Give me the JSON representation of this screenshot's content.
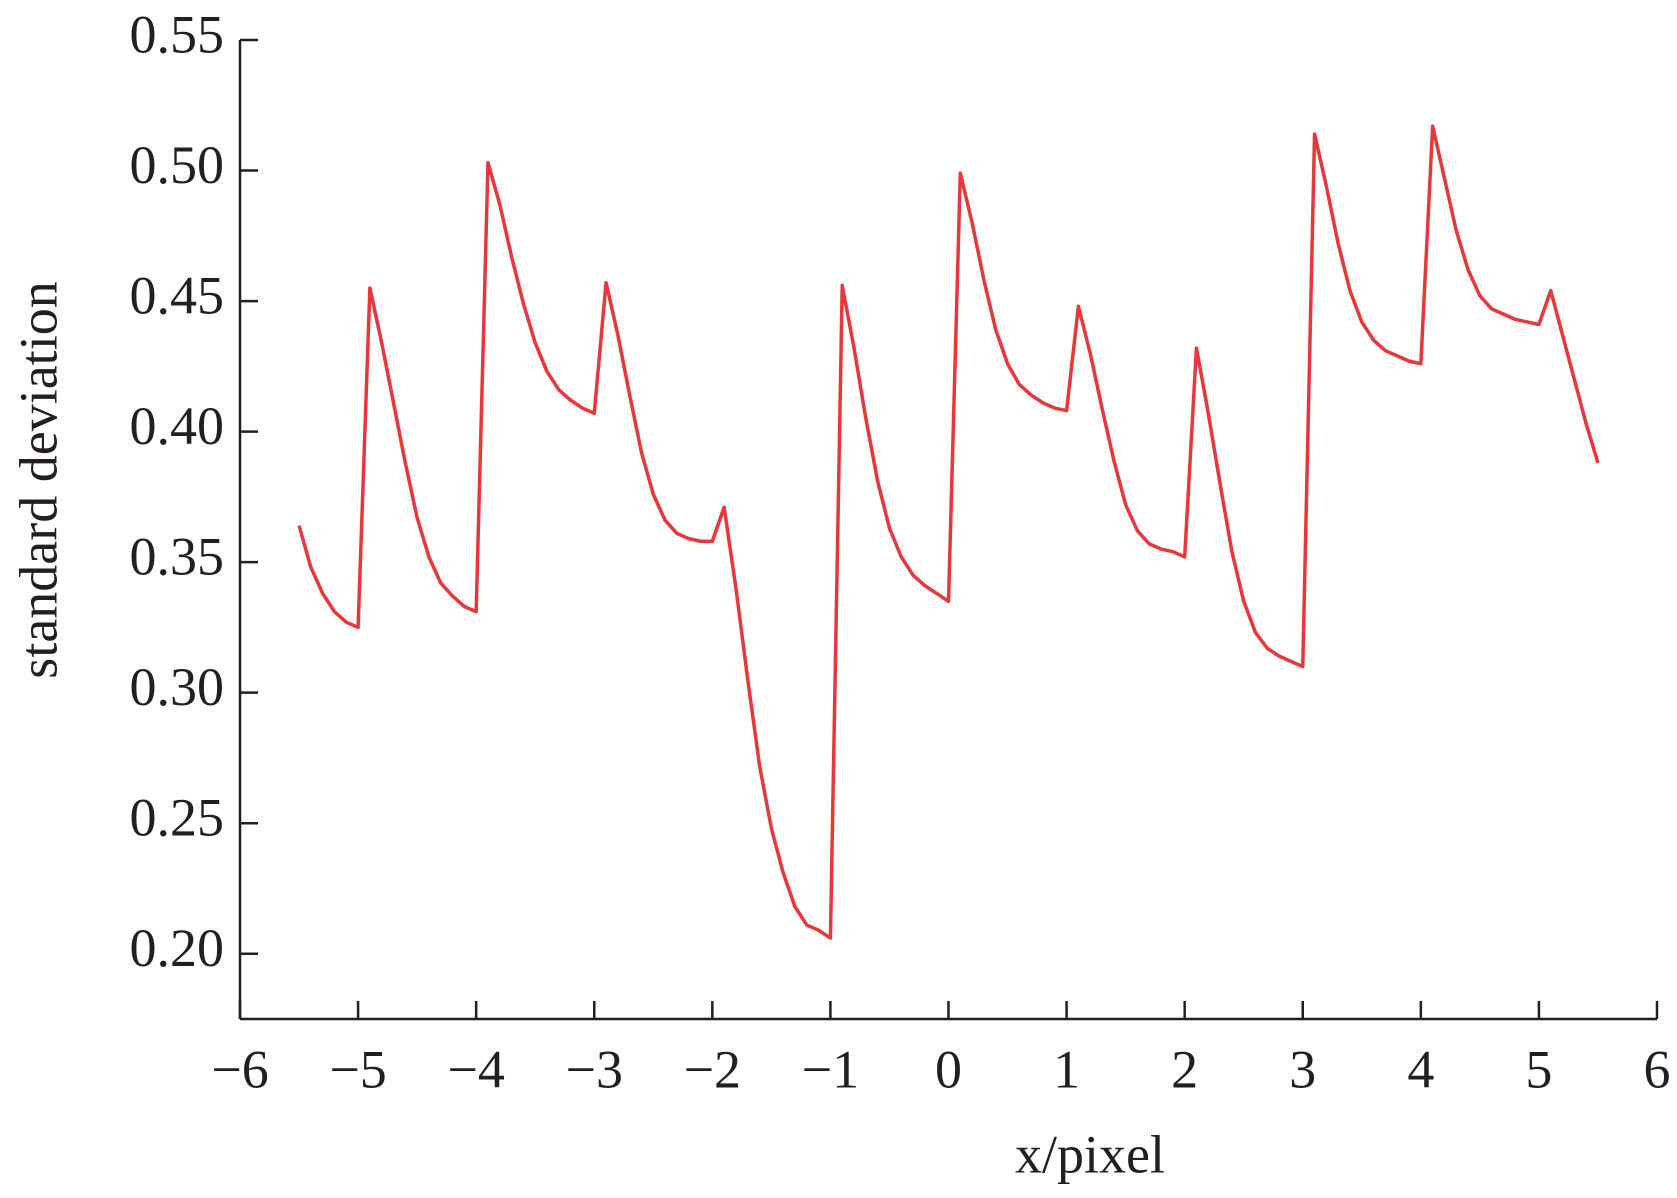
{
  "chart_data": {
    "type": "line",
    "xlabel": "x/pixel",
    "ylabel": "standard deviation",
    "xlim": [
      -6,
      6
    ],
    "ylim": [
      0.175,
      0.55
    ],
    "xticks": [
      {
        "value": -6,
        "label": "−6"
      },
      {
        "value": -5,
        "label": "−5"
      },
      {
        "value": -4,
        "label": "−4"
      },
      {
        "value": -3,
        "label": "−3"
      },
      {
        "value": -2,
        "label": "−2"
      },
      {
        "value": -1,
        "label": "−1"
      },
      0,
      1,
      2,
      3,
      4,
      5,
      6
    ],
    "yticks": [
      {
        "value": 0.2,
        "label": "0.20"
      },
      0.25,
      {
        "value": 0.3,
        "label": "0.30"
      },
      0.35,
      {
        "value": 0.4,
        "label": "0.40"
      },
      0.45,
      {
        "value": 0.5,
        "label": "0.50"
      },
      0.55
    ],
    "x": [
      -5.5,
      -5.4,
      -5.3,
      -5.2,
      -5.1,
      -5.0,
      -4.9,
      -4.8,
      -4.7,
      -4.6,
      -4.5,
      -4.4,
      -4.3,
      -4.2,
      -4.1,
      -4.0,
      -3.9,
      -3.8,
      -3.7,
      -3.6,
      -3.5,
      -3.4,
      -3.3,
      -3.2,
      -3.1,
      -3.0,
      -2.9,
      -2.8,
      -2.7,
      -2.6,
      -2.5,
      -2.4,
      -2.3,
      -2.2,
      -2.1,
      -2.0,
      -1.9,
      -1.8,
      -1.7,
      -1.6,
      -1.5,
      -1.4,
      -1.3,
      -1.2,
      -1.1,
      -1.0,
      -0.9,
      -0.8,
      -0.7,
      -0.6,
      -0.5,
      -0.4,
      -0.3,
      -0.2,
      -0.1,
      0.0,
      0.1,
      0.2,
      0.3,
      0.4,
      0.5,
      0.6,
      0.7,
      0.8,
      0.9,
      1.0,
      1.1,
      1.2,
      1.3,
      1.4,
      1.5,
      1.6,
      1.7,
      1.8,
      1.9,
      2.0,
      2.1,
      2.2,
      2.3,
      2.4,
      2.5,
      2.6,
      2.7,
      2.8,
      2.9,
      3.0,
      3.1,
      3.2,
      3.3,
      3.4,
      3.5,
      3.6,
      3.7,
      3.8,
      3.9,
      4.0,
      4.1,
      4.2,
      4.3,
      4.4,
      4.5,
      4.6,
      4.7,
      4.8,
      4.9,
      5.0,
      5.1,
      5.2,
      5.3,
      5.4,
      5.5
    ],
    "series": [
      {
        "color": "#e8373a",
        "values": [
          0.364,
          0.348,
          0.338,
          0.331,
          0.327,
          0.325,
          0.455,
          0.434,
          0.411,
          0.388,
          0.367,
          0.352,
          0.342,
          0.337,
          0.333,
          0.331,
          0.503,
          0.487,
          0.467,
          0.449,
          0.434,
          0.423,
          0.416,
          0.412,
          0.409,
          0.407,
          0.457,
          0.437,
          0.414,
          0.392,
          0.376,
          0.366,
          0.361,
          0.359,
          0.358,
          0.358,
          0.371,
          0.34,
          0.305,
          0.272,
          0.248,
          0.231,
          0.218,
          0.211,
          0.209,
          0.206,
          0.456,
          0.432,
          0.405,
          0.381,
          0.363,
          0.352,
          0.345,
          0.341,
          0.338,
          0.335,
          0.499,
          0.48,
          0.458,
          0.439,
          0.426,
          0.418,
          0.414,
          0.411,
          0.409,
          0.408,
          0.448,
          0.43,
          0.409,
          0.389,
          0.372,
          0.362,
          0.357,
          0.355,
          0.354,
          0.352,
          0.432,
          0.407,
          0.38,
          0.354,
          0.335,
          0.323,
          0.317,
          0.314,
          0.312,
          0.31,
          0.514,
          0.494,
          0.472,
          0.454,
          0.442,
          0.435,
          0.431,
          0.429,
          0.427,
          0.426,
          0.517,
          0.497,
          0.477,
          0.462,
          0.452,
          0.447,
          0.445,
          0.443,
          0.442,
          0.441,
          0.454,
          0.437,
          0.42,
          0.403,
          0.388
        ]
      }
    ]
  }
}
